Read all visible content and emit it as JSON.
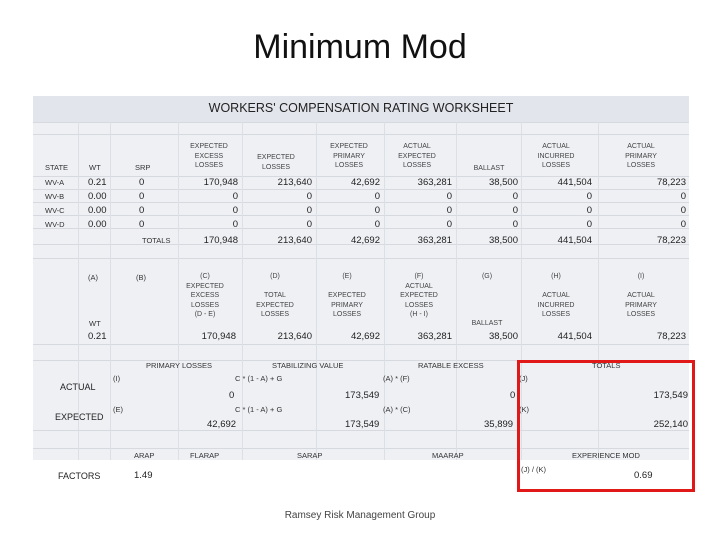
{
  "slide": {
    "title": "Minimum Mod",
    "footer": "Ramsey Risk Management Group"
  },
  "worksheet": {
    "title": "WORKERS' COMPENSATION RATING WORKSHEET",
    "headers": {
      "state": "STATE",
      "wt": "WT",
      "srp": "SRP",
      "expected_excess": [
        "EXPECTED",
        "EXCESS",
        "LOSSES"
      ],
      "expected_losses": [
        "EXPECTED",
        "LOSSES"
      ],
      "expected_primary": [
        "EXPECTED",
        "PRIMARY",
        "LOSSES"
      ],
      "actual_expected": [
        "ACTUAL",
        "EXPECTED",
        "LOSSES"
      ],
      "ballast": "BALLAST",
      "actual_incurred": [
        "ACTUAL",
        "INCURRED",
        "LOSSES"
      ],
      "actual_primary": [
        "ACTUAL",
        "PRIMARY",
        "LOSSES"
      ]
    },
    "rows": [
      {
        "state": "WV-A",
        "wt": "0.21",
        "srp": "0",
        "exp_excess": "170,948",
        "exp_losses": "213,640",
        "exp_primary": "42,692",
        "act_expected": "363,281",
        "ballast": "38,500",
        "act_incurred": "441,504",
        "act_primary": "78,223"
      },
      {
        "state": "WV-B",
        "wt": "0.00",
        "srp": "0",
        "exp_excess": "0",
        "exp_losses": "0",
        "exp_primary": "0",
        "act_expected": "0",
        "ballast": "0",
        "act_incurred": "0",
        "act_primary": "0"
      },
      {
        "state": "WV-C",
        "wt": "0.00",
        "srp": "0",
        "exp_excess": "0",
        "exp_losses": "0",
        "exp_primary": "0",
        "act_expected": "0",
        "ballast": "0",
        "act_incurred": "0",
        "act_primary": "0"
      },
      {
        "state": "WV-D",
        "wt": "0.00",
        "srp": "0",
        "exp_excess": "0",
        "exp_losses": "0",
        "exp_primary": "0",
        "act_expected": "0",
        "ballast": "0",
        "act_incurred": "0",
        "act_primary": "0"
      }
    ],
    "totals": {
      "label": "TOTALS",
      "exp_excess": "170,948",
      "exp_losses": "213,640",
      "exp_primary": "42,692",
      "act_expected": "363,281",
      "ballast": "38,500",
      "act_incurred": "441,504",
      "act_primary": "78,223"
    },
    "letters": {
      "a": "(A)",
      "b": "(B)",
      "c": "(C)",
      "d": "(D)",
      "e": "(E)",
      "f": "(F)",
      "g": "(G)",
      "h": "(H)",
      "i": "(I)"
    },
    "section2_headers": {
      "c": [
        "EXPECTED",
        "EXCESS",
        "LOSSES",
        "(D - E)"
      ],
      "d": [
        "TOTAL",
        "EXPECTED",
        "LOSSES"
      ],
      "e": [
        "EXPECTED",
        "PRIMARY",
        "LOSSES"
      ],
      "f": [
        "ACTUAL",
        "EXPECTED",
        "LOSSES",
        "(H - I)"
      ],
      "g": "BALLAST",
      "h": [
        "ACTUAL",
        "INCURRED",
        "LOSSES"
      ],
      "i": [
        "ACTUAL",
        "PRIMARY",
        "LOSSES"
      ],
      "wt": "WT"
    },
    "section2_values": {
      "wt": "0.21",
      "c": "170,948",
      "d": "213,640",
      "e": "42,692",
      "f": "363,281",
      "g": "38,500",
      "h": "441,504",
      "i": "78,223"
    },
    "calc": {
      "primary_losses": "PRIMARY LOSSES",
      "stabilizing_value": "STABILIZING VALUE",
      "ratable_excess": "RATABLE EXCESS",
      "totals": "TOTALS",
      "actual_label": "ACTUAL",
      "expected_label": "EXPECTED",
      "actual_letter": "(I)",
      "expected_letter": "(E)",
      "actual_formula": "C * (1 - A) + G",
      "expected_formula": "C * (1 - A) + G",
      "actual_ratable": "(A) * (F)",
      "expected_ratable": "(A) * (C)",
      "j_letter": "(J)",
      "k_letter": "(K)",
      "actual_primary": "0",
      "actual_stab": "173,549",
      "actual_ratable_val": "0",
      "actual_total": "173,549",
      "expected_primary": "42,692",
      "expected_stab": "173,549",
      "expected_ratable_val": "35,899",
      "expected_total": "252,140"
    },
    "factors": {
      "label": "FACTORS",
      "arap_label": "ARAP",
      "flarap_label": "FLARAP",
      "sarap_label": "SARAP",
      "maarap_label": "MAARAP",
      "exp_mod_label": "EXPERIENCE MOD",
      "arap_value": "1.49",
      "ratio_label": "(J) / (K)",
      "exp_mod_value": "0.69"
    }
  }
}
